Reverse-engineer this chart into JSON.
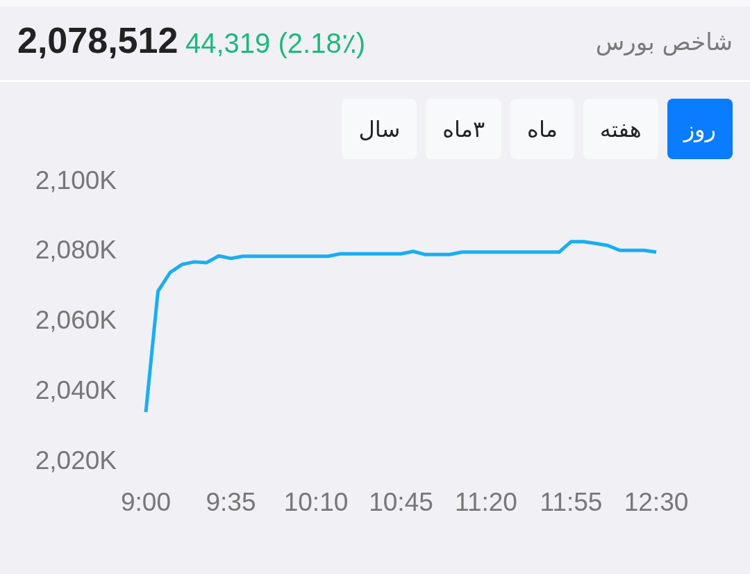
{
  "chart_data": {
    "type": "line",
    "title": "شاخص بورس",
    "subtitle": "2,078,512",
    "annotations": [
      "44,319 (2.18٪)",
      "روز",
      "هفته",
      "ماه",
      "۳ماه",
      "سال"
    ],
    "x": [
      9,
      9.0833,
      9.1667,
      9.25,
      9.3333,
      9.4167,
      9.5,
      9.5833,
      9.6667,
      9.75,
      9.8333,
      9.9167,
      10,
      10.0833,
      10.1667,
      10.25,
      10.3333,
      10.4167,
      10.5,
      10.5833,
      10.6667,
      10.75,
      10.8333,
      10.9167,
      11,
      11.0833,
      11.1667,
      11.25,
      11.3333,
      11.4167,
      11.5,
      11.5833,
      11.6667,
      11.75,
      11.8333,
      11.9167,
      12,
      12.0833,
      12.1667,
      12.25,
      12.3333,
      12.4167,
      12.5
    ],
    "series": [
      {
        "color": "#1aaef0",
        "values": [
          2033.7,
          2068.2,
          2073.6,
          2075.9,
          2076.6,
          2076.4,
          2078.3,
          2077.6,
          2078.2,
          2078.2,
          2078.2,
          2078.2,
          2078.2,
          2078.2,
          2078.2,
          2078.2,
          2078.9,
          2078.9,
          2078.9,
          2078.9,
          2078.9,
          2078.9,
          2079.6,
          2078.7,
          2078.7,
          2078.7,
          2079.4,
          2079.4,
          2079.4,
          2079.4,
          2079.4,
          2079.4,
          2079.4,
          2079.4,
          2079.4,
          2082.4,
          2082.4,
          2081.9,
          2081.3,
          2079.9,
          2079.9,
          2079.9,
          2079.4
        ]
      }
    ],
    "xlim": [
      9,
      12.5
    ],
    "xticks": [
      {
        "value": 9,
        "label": "9:00"
      },
      {
        "value": 9.5833,
        "label": "9:35"
      },
      {
        "value": 10.1667,
        "label": "10:10"
      },
      {
        "value": 10.75,
        "label": "10:45"
      },
      {
        "value": 11.3333,
        "label": "11:20"
      },
      {
        "value": 11.9167,
        "label": "11:55"
      },
      {
        "value": 12.5,
        "label": "12:30"
      }
    ],
    "ylim": [
      2020,
      2100
    ],
    "yticks": [
      {
        "value": 2020,
        "label": "2,020K"
      },
      {
        "value": 2040,
        "label": "2,040K"
      },
      {
        "value": 2060,
        "label": "2,060K"
      },
      {
        "value": 2080,
        "label": "2,080K"
      },
      {
        "value": 2100,
        "label": "2,100K"
      }
    ]
  }
}
